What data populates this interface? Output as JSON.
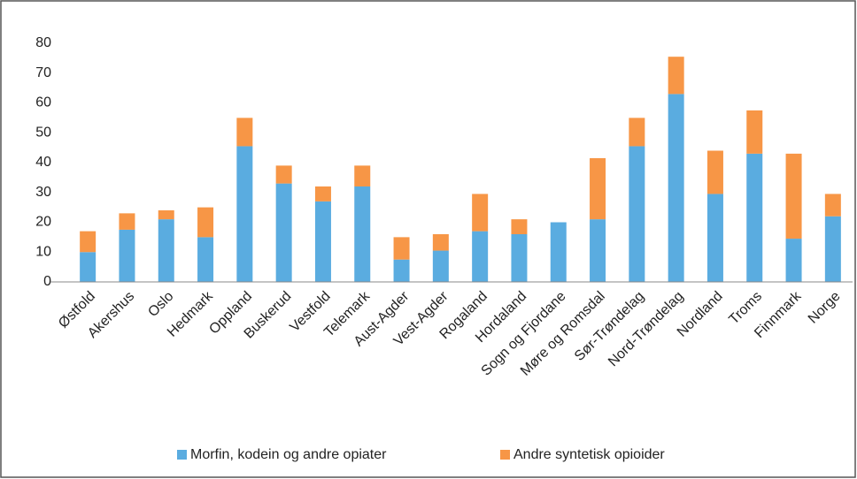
{
  "chart_data": {
    "type": "stacked_bar",
    "categories": [
      "Østfold",
      "Akershus",
      "Oslo",
      "Hedmark",
      "Oppland",
      "Buskerud",
      "Vestfold",
      "Telemark",
      "Aust-Agder",
      "Vest-Agder",
      "Rogaland",
      "Hordaland",
      "Sogn og Fjordane",
      "Møre og Romsdal",
      "Sør-Trøndelag",
      "Nord-Trøndelag",
      "Nordland",
      "Troms",
      "Finnmark",
      "Norge"
    ],
    "series": [
      {
        "name": "Morfin, kodein og andre opiater",
        "color": "#5aace0",
        "values": [
          10,
          17.5,
          21,
          15,
          45.5,
          33,
          27,
          32,
          7.5,
          10.5,
          17,
          16,
          20,
          21,
          45.5,
          63,
          29.5,
          43,
          14.5,
          22
        ]
      },
      {
        "name": "Andre syntetisk opioider",
        "color": "#f79646",
        "values": [
          7,
          5.5,
          3,
          10,
          9.5,
          6,
          5,
          7,
          7.5,
          5.5,
          12.5,
          5,
          0,
          20.5,
          9.5,
          12.5,
          14.5,
          14.5,
          28.5,
          7.5
        ]
      }
    ],
    "ylim": [
      0,
      80
    ],
    "yticks": [
      0,
      10,
      20,
      30,
      40,
      50,
      60,
      70,
      80
    ],
    "grid": false,
    "legend": "bottom"
  }
}
